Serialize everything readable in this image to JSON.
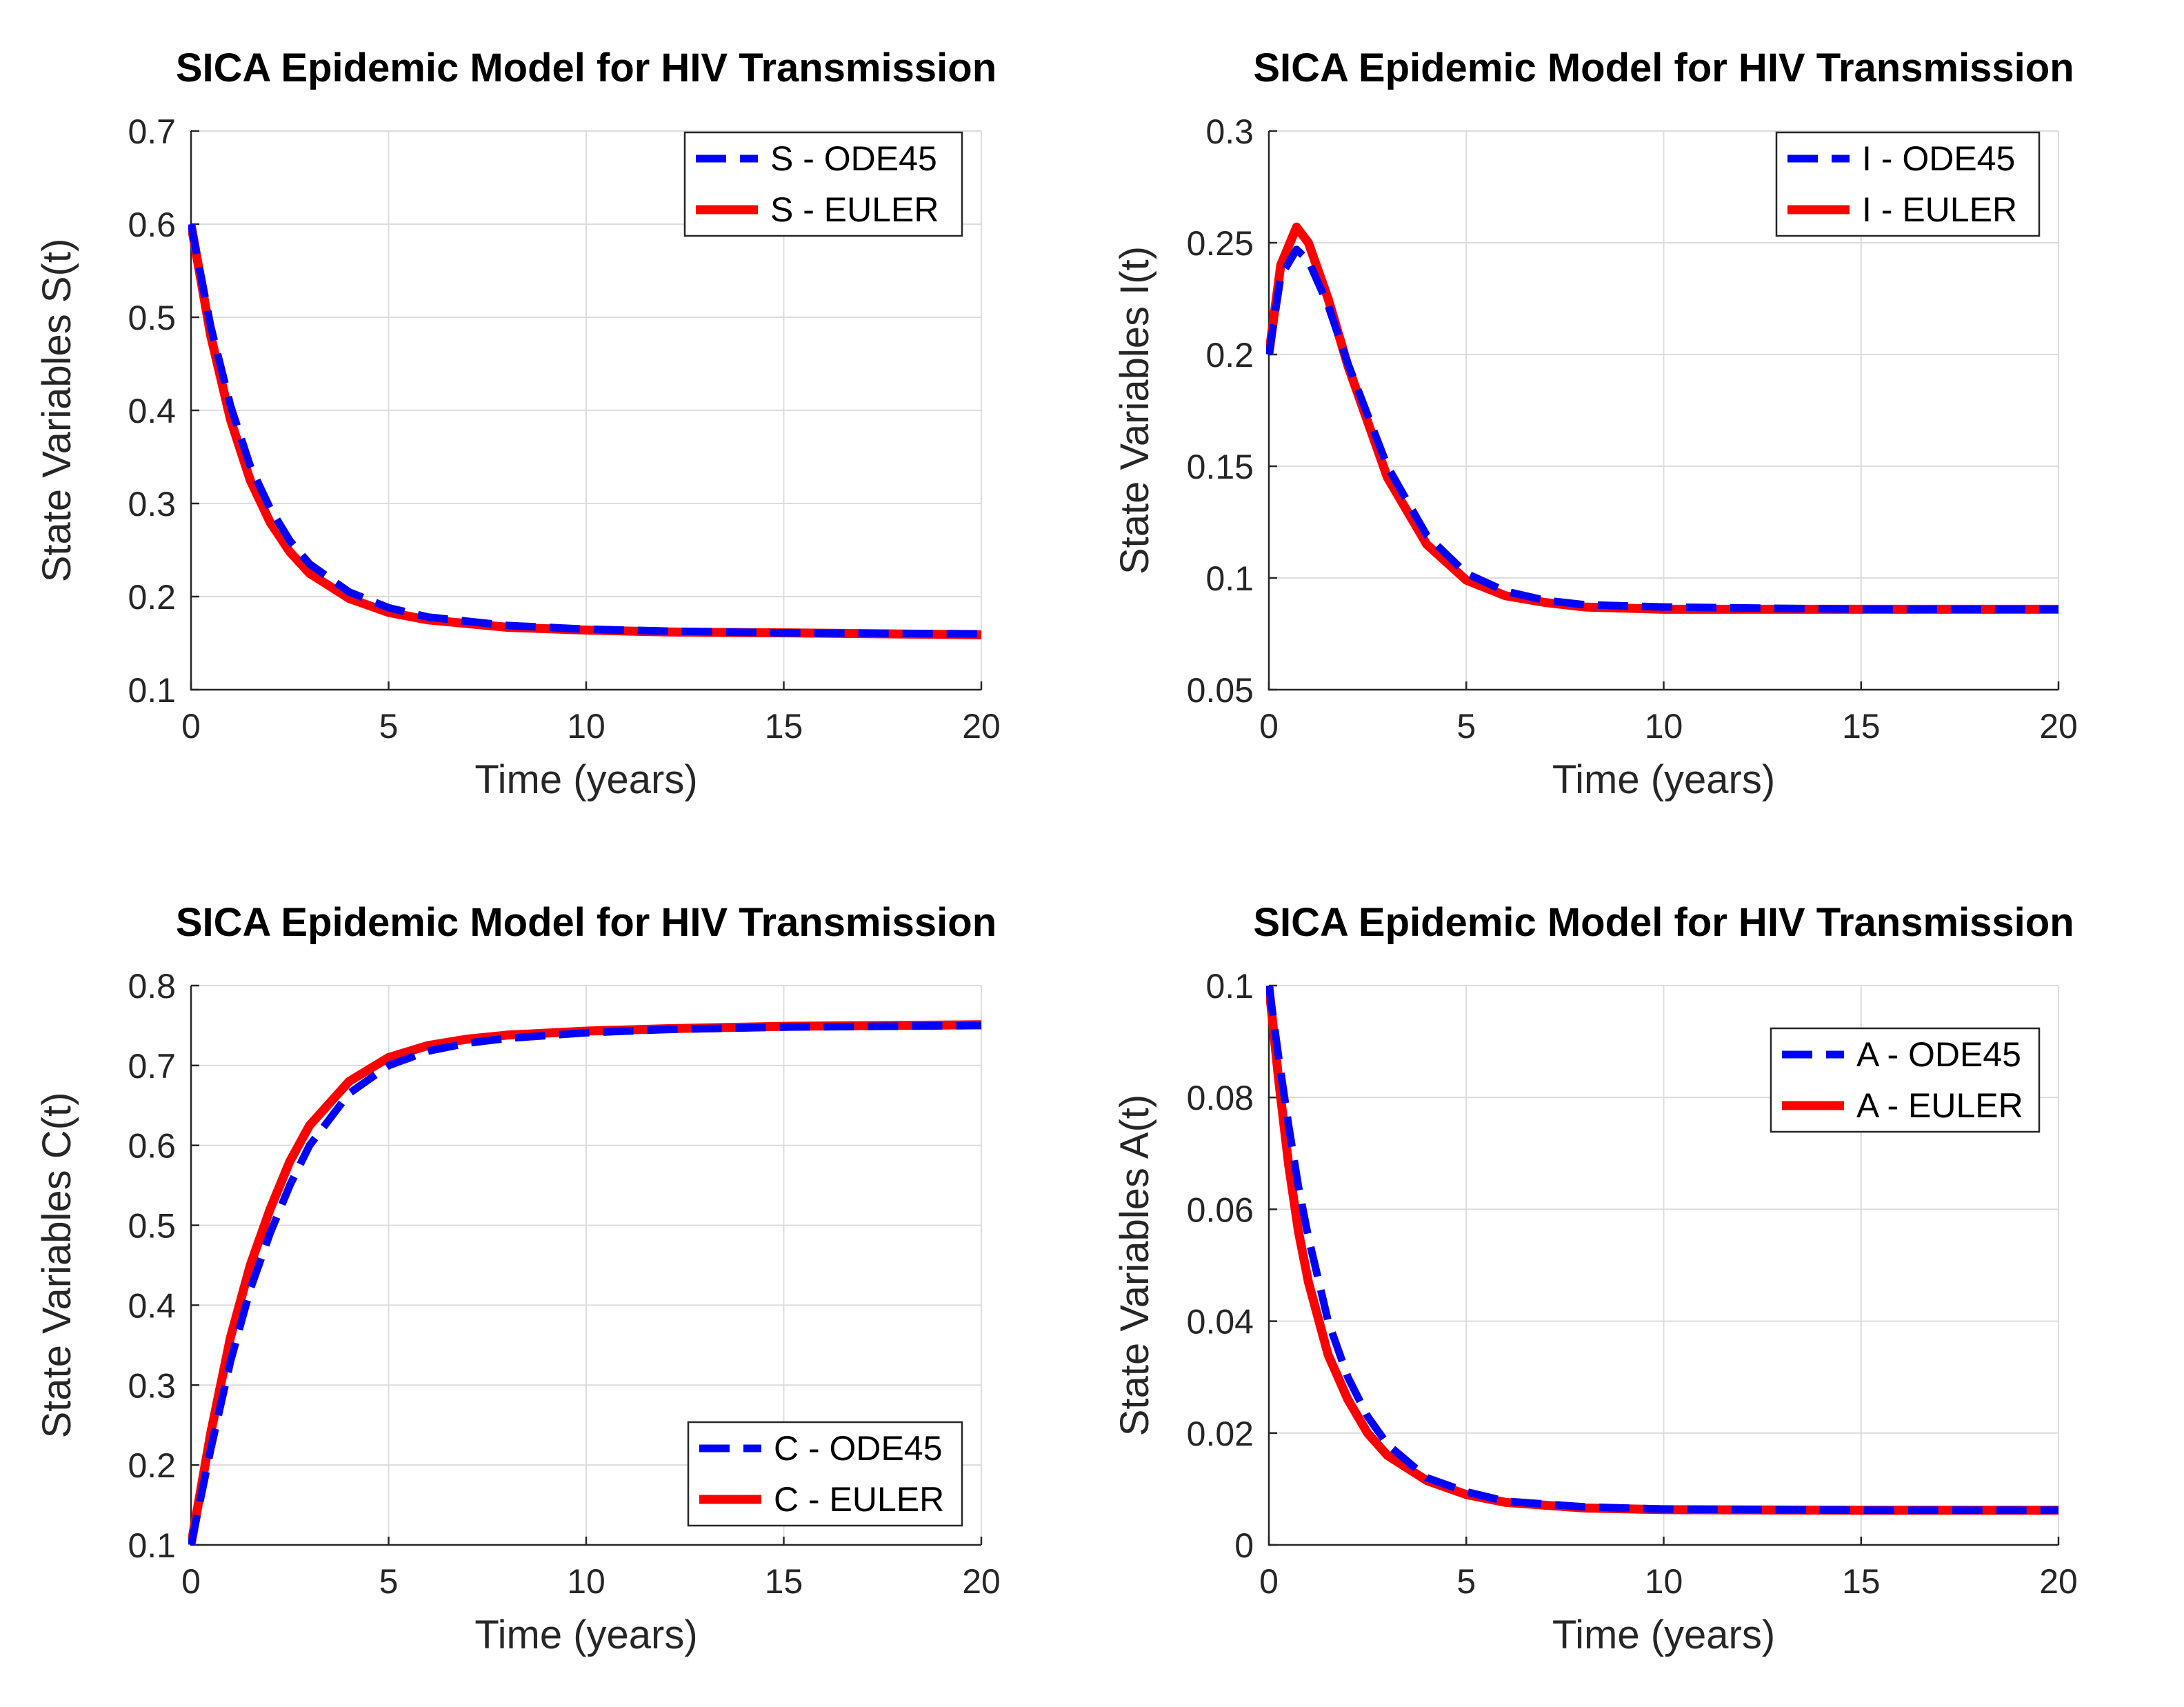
{
  "chart_data": [
    {
      "type": "line",
      "title": "SICA Epidemic Model for HIV Transmission",
      "xlabel": "Time (years)",
      "ylabel": "State Variables S(t)",
      "xlim": [
        0,
        20
      ],
      "ylim": [
        0.1,
        0.7
      ],
      "xticks": [
        0,
        5,
        10,
        15,
        20
      ],
      "yticks": [
        0.1,
        0.2,
        0.3,
        0.4,
        0.5,
        0.6,
        0.7
      ],
      "xtick_labels": [
        "0",
        "5",
        "10",
        "15",
        "20"
      ],
      "ytick_labels": [
        "0.1",
        "0.2",
        "0.3",
        "0.4",
        "0.5",
        "0.6",
        "0.7"
      ],
      "grid": true,
      "legend_position": "top-right",
      "series": [
        {
          "name": "S - ODE45",
          "color": "#0000ff",
          "style": "dashed",
          "x": [
            0,
            0.5,
            1,
            1.5,
            2,
            2.5,
            3,
            4,
            5,
            6,
            8,
            10,
            12,
            15,
            20
          ],
          "y": [
            0.6,
            0.49,
            0.405,
            0.34,
            0.295,
            0.26,
            0.235,
            0.205,
            0.188,
            0.178,
            0.169,
            0.165,
            0.163,
            0.161,
            0.16
          ]
        },
        {
          "name": "S - EULER",
          "color": "#ff0000",
          "style": "solid",
          "x": [
            0,
            0.5,
            1,
            1.5,
            2,
            2.5,
            3,
            4,
            5,
            6,
            8,
            10,
            12,
            15,
            20
          ],
          "y": [
            0.6,
            0.48,
            0.39,
            0.325,
            0.28,
            0.248,
            0.225,
            0.198,
            0.183,
            0.175,
            0.167,
            0.164,
            0.162,
            0.161,
            0.159
          ]
        }
      ]
    },
    {
      "type": "line",
      "title": "SICA Epidemic Model for HIV Transmission",
      "xlabel": "Time (years)",
      "ylabel": "State Variables I(t)",
      "xlim": [
        0,
        20
      ],
      "ylim": [
        0.05,
        0.3
      ],
      "xticks": [
        0,
        5,
        10,
        15,
        20
      ],
      "yticks": [
        0.05,
        0.1,
        0.15,
        0.2,
        0.25,
        0.3
      ],
      "xtick_labels": [
        "0",
        "5",
        "10",
        "15",
        "20"
      ],
      "ytick_labels": [
        "0.05",
        "0.1",
        "0.15",
        "0.2",
        "0.25",
        "0.3"
      ],
      "grid": true,
      "legend_position": "top-right",
      "series": [
        {
          "name": "I - ODE45",
          "color": "#0000ff",
          "style": "dashed",
          "x": [
            0,
            0.3,
            0.7,
            1,
            1.5,
            2,
            3,
            4,
            5,
            6,
            7,
            8,
            10,
            15,
            20
          ],
          "y": [
            0.2,
            0.235,
            0.247,
            0.242,
            0.222,
            0.196,
            0.15,
            0.119,
            0.102,
            0.094,
            0.09,
            0.088,
            0.087,
            0.086,
            0.086
          ]
        },
        {
          "name": "I - EULER",
          "color": "#ff0000",
          "style": "solid",
          "x": [
            0,
            0.3,
            0.7,
            1,
            1.5,
            2,
            3,
            4,
            5,
            6,
            7,
            8,
            10,
            15,
            20
          ],
          "y": [
            0.2,
            0.24,
            0.257,
            0.25,
            0.225,
            0.195,
            0.145,
            0.115,
            0.099,
            0.092,
            0.089,
            0.087,
            0.086,
            0.086,
            0.086
          ]
        }
      ]
    },
    {
      "type": "line",
      "title": "SICA Epidemic Model for HIV Transmission",
      "xlabel": "Time (years)",
      "ylabel": "State Variables C(t)",
      "xlim": [
        0,
        20
      ],
      "ylim": [
        0.1,
        0.8
      ],
      "xticks": [
        0,
        5,
        10,
        15,
        20
      ],
      "yticks": [
        0.1,
        0.2,
        0.3,
        0.4,
        0.5,
        0.6,
        0.7,
        0.8
      ],
      "xtick_labels": [
        "0",
        "5",
        "10",
        "15",
        "20"
      ],
      "ytick_labels": [
        "0.1",
        "0.2",
        "0.3",
        "0.4",
        "0.5",
        "0.6",
        "0.7",
        "0.8"
      ],
      "grid": true,
      "legend_position": "bottom-right",
      "series": [
        {
          "name": "C - ODE45",
          "color": "#0000ff",
          "style": "dashed",
          "x": [
            0,
            0.5,
            1,
            1.5,
            2,
            2.5,
            3,
            4,
            5,
            6,
            7,
            8,
            10,
            12,
            15,
            20
          ],
          "y": [
            0.1,
            0.22,
            0.33,
            0.42,
            0.49,
            0.55,
            0.6,
            0.665,
            0.7,
            0.718,
            0.728,
            0.734,
            0.741,
            0.745,
            0.748,
            0.75
          ]
        },
        {
          "name": "C - EULER",
          "color": "#ff0000",
          "style": "solid",
          "x": [
            0,
            0.5,
            1,
            1.5,
            2,
            2.5,
            3,
            4,
            5,
            6,
            7,
            8,
            10,
            12,
            15,
            20
          ],
          "y": [
            0.1,
            0.24,
            0.36,
            0.45,
            0.52,
            0.58,
            0.625,
            0.68,
            0.71,
            0.725,
            0.733,
            0.738,
            0.743,
            0.746,
            0.749,
            0.751
          ]
        }
      ]
    },
    {
      "type": "line",
      "title": "SICA Epidemic Model for HIV Transmission",
      "xlabel": "Time (years)",
      "ylabel": "State Variables A(t)",
      "xlim": [
        0,
        20
      ],
      "ylim": [
        0,
        0.1
      ],
      "xticks": [
        0,
        5,
        10,
        15,
        20
      ],
      "yticks": [
        0,
        0.02,
        0.04,
        0.06,
        0.08,
        0.1
      ],
      "xtick_labels": [
        "0",
        "5",
        "10",
        "15",
        "20"
      ],
      "ytick_labels": [
        "0",
        "0.02",
        "0.04",
        "0.06",
        "0.08",
        "0.1"
      ],
      "grid": true,
      "legend_position": "top-right",
      "series": [
        {
          "name": "A - ODE45",
          "color": "#0000ff",
          "style": "dashed",
          "x": [
            0,
            0.25,
            0.5,
            0.75,
            1,
            1.5,
            2,
            2.5,
            3,
            4,
            5,
            6,
            8,
            10,
            15,
            20
          ],
          "y": [
            0.1,
            0.087,
            0.075,
            0.064,
            0.055,
            0.04,
            0.03,
            0.023,
            0.018,
            0.012,
            0.0095,
            0.0078,
            0.0068,
            0.0064,
            0.0062,
            0.0062
          ]
        },
        {
          "name": "A - EULER",
          "color": "#ff0000",
          "style": "solid",
          "x": [
            0,
            0.25,
            0.5,
            0.75,
            1,
            1.5,
            2,
            2.5,
            3,
            4,
            5,
            6,
            8,
            10,
            15,
            20
          ],
          "y": [
            0.1,
            0.083,
            0.068,
            0.056,
            0.047,
            0.034,
            0.026,
            0.02,
            0.016,
            0.0115,
            0.009,
            0.0076,
            0.0066,
            0.0063,
            0.0062,
            0.0062
          ]
        }
      ]
    }
  ]
}
